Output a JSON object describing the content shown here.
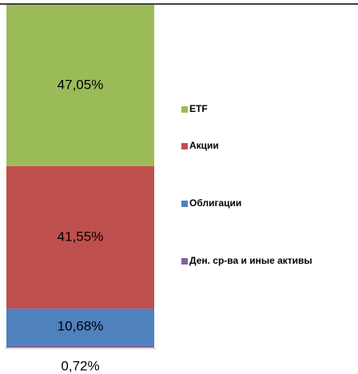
{
  "chart_data": {
    "type": "bar",
    "stacked": true,
    "ylim": [
      0,
      100
    ],
    "series": [
      {
        "name": "ETF",
        "color": "#9bbb59",
        "values": [
          47.05
        ],
        "value_labels": [
          "47,05%"
        ]
      },
      {
        "name": "Акции",
        "color": "#c0504d",
        "values": [
          41.55
        ],
        "value_labels": [
          "41,55%"
        ]
      },
      {
        "name": "Облигации",
        "color": "#4f81bd",
        "values": [
          10.68
        ],
        "value_labels": [
          "10,68%"
        ]
      },
      {
        "name": "Ден. ср-ва и иные активы",
        "color": "#8064a2",
        "values": [
          0.72
        ],
        "value_labels": [
          "0,72%"
        ]
      }
    ]
  }
}
